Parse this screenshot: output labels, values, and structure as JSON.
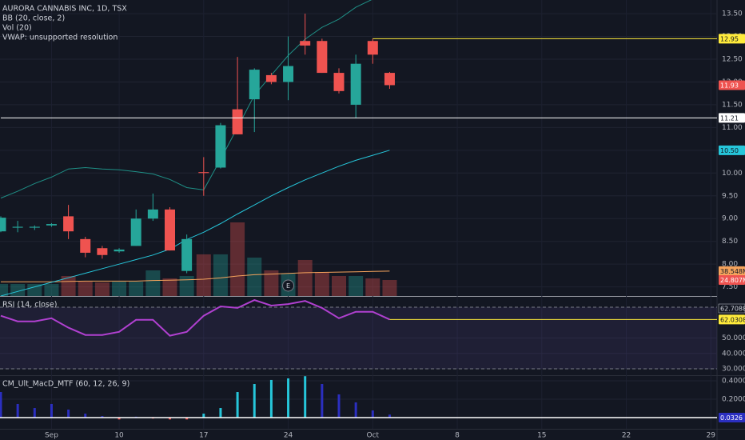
{
  "chart_data": [
    {
      "type": "candlestick",
      "title": "AURORA CANNABIS INC, 1D, TSX",
      "indicators": [
        "BB (20, close, 2)",
        "Vol (20)",
        "VWAP: unsupported resolution"
      ],
      "categories": [
        null,
        null,
        null,
        "Sep",
        null,
        null,
        null,
        "10",
        null,
        null,
        null,
        null,
        "17",
        null,
        null,
        null,
        null,
        "24",
        null,
        null,
        null,
        null,
        "Oct",
        null
      ],
      "future_labels": [
        "8",
        "15",
        "22",
        "29"
      ],
      "open": [
        8.72,
        8.8,
        8.8,
        8.85,
        9.05,
        8.55,
        8.35,
        8.28,
        8.4,
        9.0,
        9.2,
        7.85,
        10.02,
        10.12,
        11.4,
        11.62,
        12.15,
        12.0,
        12.9,
        12.9,
        12.2,
        11.5,
        12.9,
        12.2
      ],
      "high": [
        9.05,
        8.95,
        8.85,
        8.9,
        9.3,
        8.6,
        8.4,
        8.35,
        9.2,
        9.55,
        9.25,
        8.65,
        10.35,
        11.1,
        12.55,
        12.3,
        12.2,
        13.0,
        13.5,
        12.95,
        12.3,
        12.6,
        12.95,
        12.22
      ],
      "low": [
        8.7,
        8.7,
        8.75,
        8.82,
        8.55,
        8.15,
        8.12,
        8.25,
        8.4,
        8.95,
        8.3,
        7.8,
        9.5,
        10.1,
        10.85,
        10.9,
        11.95,
        11.6,
        12.6,
        12.2,
        11.75,
        11.2,
        12.4,
        11.85
      ],
      "close": [
        9.02,
        8.82,
        8.82,
        8.88,
        8.72,
        8.25,
        8.2,
        8.32,
        9.0,
        9.2,
        8.3,
        8.55,
        10.0,
        11.05,
        10.85,
        12.27,
        12.0,
        12.35,
        12.8,
        12.2,
        11.8,
        12.4,
        12.6,
        11.93
      ],
      "up_color": "#26a69a",
      "down_color": "#ef5350",
      "ylim": [
        7.3,
        13.8
      ],
      "yticks": [
        {
          "value": 7.5,
          "label": "7.50"
        },
        {
          "value": 8,
          "label": "8.00"
        },
        {
          "value": 8.5,
          "label": "8.50"
        },
        {
          "value": 9,
          "label": "9.00"
        },
        {
          "value": 9.5,
          "label": "9.50"
        },
        {
          "value": 10,
          "label": "10.00"
        },
        {
          "value": 10.5,
          "label": "10.50"
        },
        {
          "value": 11,
          "label": "11.00"
        },
        {
          "value": 11.5,
          "label": "11.50"
        },
        {
          "value": 12,
          "label": "12.00"
        },
        {
          "value": 12.5,
          "label": "12.50"
        },
        {
          "value": 13,
          "label": "13.00"
        },
        {
          "value": 13.5,
          "label": "13.50"
        }
      ],
      "bb_upper": {
        "color": "#1f8f86",
        "values": [
          9.45,
          9.6,
          9.77,
          9.91,
          10.09,
          10.12,
          10.09,
          10.07,
          10.03,
          9.98,
          9.86,
          9.68,
          9.63,
          10.3,
          11.0,
          11.71,
          12.15,
          12.58,
          12.94,
          13.2,
          13.38,
          13.64,
          13.82,
          13.96
        ]
      },
      "bb_basis": {
        "color": "#26c6da",
        "values": [
          7.3,
          7.4,
          7.5,
          7.6,
          7.7,
          7.8,
          7.9,
          8.0,
          8.1,
          8.2,
          8.33,
          8.54,
          8.7,
          8.89,
          9.1,
          9.3,
          9.5,
          9.68,
          9.85,
          10.0,
          10.15,
          10.28,
          10.39,
          10.5
        ],
        "last_label": "10.50"
      },
      "hlines": [
        {
          "value": 12.95,
          "color": "#ffeb3b"
        },
        {
          "value": 11.21,
          "color": "#ffffff"
        }
      ],
      "volume": {
        "values": [
          18.6,
          18.6,
          18.6,
          18.6,
          31,
          22.3,
          21,
          22.3,
          22.3,
          39.7,
          27.3,
          31,
          64.5,
          64.5,
          114,
          59.5,
          39.7,
          34.7,
          55.8,
          37.2,
          31,
          31,
          27.3,
          24.807
        ],
        "value_label": "24.807M"
      },
      "vol_ma": {
        "color": "#f5a35c",
        "values": [
          22,
          22,
          22,
          22,
          22.5,
          23,
          23,
          23,
          23,
          24,
          24.5,
          25,
          26,
          28,
          31,
          33,
          34,
          35,
          36,
          36.5,
          37,
          37.5,
          38,
          38.548
        ],
        "value_label": "38.548M"
      },
      "earnings_marker": "E"
    },
    {
      "type": "line",
      "title": "RSI (14, close)",
      "color": "#b040d0",
      "values": [
        64.4,
        60.8,
        60.8,
        62.8,
        56.7,
        52,
        52,
        54,
        61.8,
        61.8,
        51.5,
        54,
        64.4,
        70.5,
        69.5,
        74.6,
        71,
        72,
        74,
        69.5,
        62.8,
        67,
        67,
        62.0308
      ],
      "ma_value": {
        "value": 62.7088,
        "label": "62.7088"
      },
      "bands": [
        70,
        30
      ],
      "ylim": [
        26.4,
        76.2
      ],
      "yticks": [
        {
          "value": 50,
          "label": "50.0000"
        },
        {
          "value": 40,
          "label": "40.0000"
        },
        {
          "value": 30,
          "label": "30.0000"
        }
      ]
    },
    {
      "type": "bar",
      "title": "CM_Ult_MacD_MTF (60, 12, 26, 9)",
      "values": [
        0.278,
        0.148,
        0.104,
        0.148,
        0.087,
        0.043,
        0.017,
        -0.02,
        0.01,
        -0.01,
        -0.02,
        -0.02,
        0.043,
        0.104,
        0.278,
        0.365,
        0.409,
        0.426,
        0.45,
        0.365,
        0.252,
        0.165,
        0.078,
        0.0326
      ],
      "colors": [
        "#2b2fc0",
        "#2b2fc0",
        "#2b2fc0",
        "#2b2fc0",
        "#2b2fc0",
        "#2b2fc0",
        "#2b2fc0",
        "#ef5350",
        "#2b2fc0",
        "#ef5350",
        "#ef5350",
        "#ef5350",
        "#26c6da",
        "#26c6da",
        "#26c6da",
        "#26c6da",
        "#26c6da",
        "#26c6da",
        "#26c6da",
        "#2b2fc0",
        "#2b2fc0",
        "#2b2fc0",
        "#2b2fc0",
        "#2b2fc0"
      ],
      "ylim": [
        -0.113,
        0.452
      ],
      "yticks": [
        {
          "value": 0.4,
          "label": "0.4000"
        },
        {
          "value": 0.2,
          "label": "0.2000"
        }
      ]
    }
  ]
}
